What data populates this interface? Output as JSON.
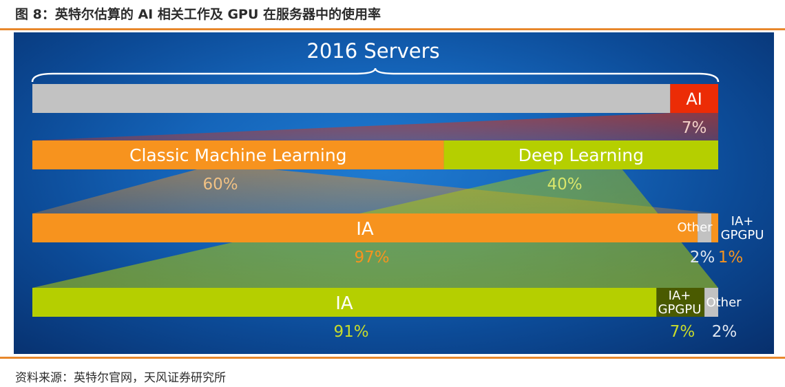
{
  "figure": {
    "title": "图 8：英特尔估算的 AI 相关工作及 GPU 在服务器中的使用率",
    "source": "资料来源：英特尔官网，天风证券研究所"
  },
  "colors": {
    "orange": "#f7931e",
    "green": "#b5cf00",
    "gray": "#c2c2c2",
    "red": "#ec2c06",
    "dark_green": "#4a5a00",
    "pct_orange": "#f7931e",
    "pct_green": "#c9dc2b"
  },
  "chart_data": {
    "type": "bar",
    "title": "2016 Servers",
    "rows": [
      {
        "segments": [
          {
            "label": "",
            "value": 93,
            "color": "gray"
          },
          {
            "label": "AI",
            "value": 7,
            "pct": "7%",
            "color": "red"
          }
        ]
      },
      {
        "segments": [
          {
            "label": "Classic Machine Learning",
            "value": 60,
            "pct": "60%",
            "color": "orange"
          },
          {
            "label": "Deep Learning",
            "value": 40,
            "pct": "40%",
            "color": "green"
          }
        ]
      },
      {
        "segments": [
          {
            "label": "IA",
            "value": 97,
            "pct": "97%",
            "color": "orange"
          },
          {
            "label": "Other",
            "value": 2,
            "pct": "2%",
            "color": "gray"
          },
          {
            "label": "IA+ GPGPU",
            "value": 1,
            "pct": "1%",
            "color": "orange"
          }
        ]
      },
      {
        "segments": [
          {
            "label": "IA",
            "value": 91,
            "pct": "91%",
            "color": "green"
          },
          {
            "label": "IA+ GPGPU",
            "value": 7,
            "pct": "7%",
            "color": "dark_green"
          },
          {
            "label": "Other",
            "value": 2,
            "pct": "2%",
            "color": "gray"
          }
        ]
      }
    ]
  }
}
